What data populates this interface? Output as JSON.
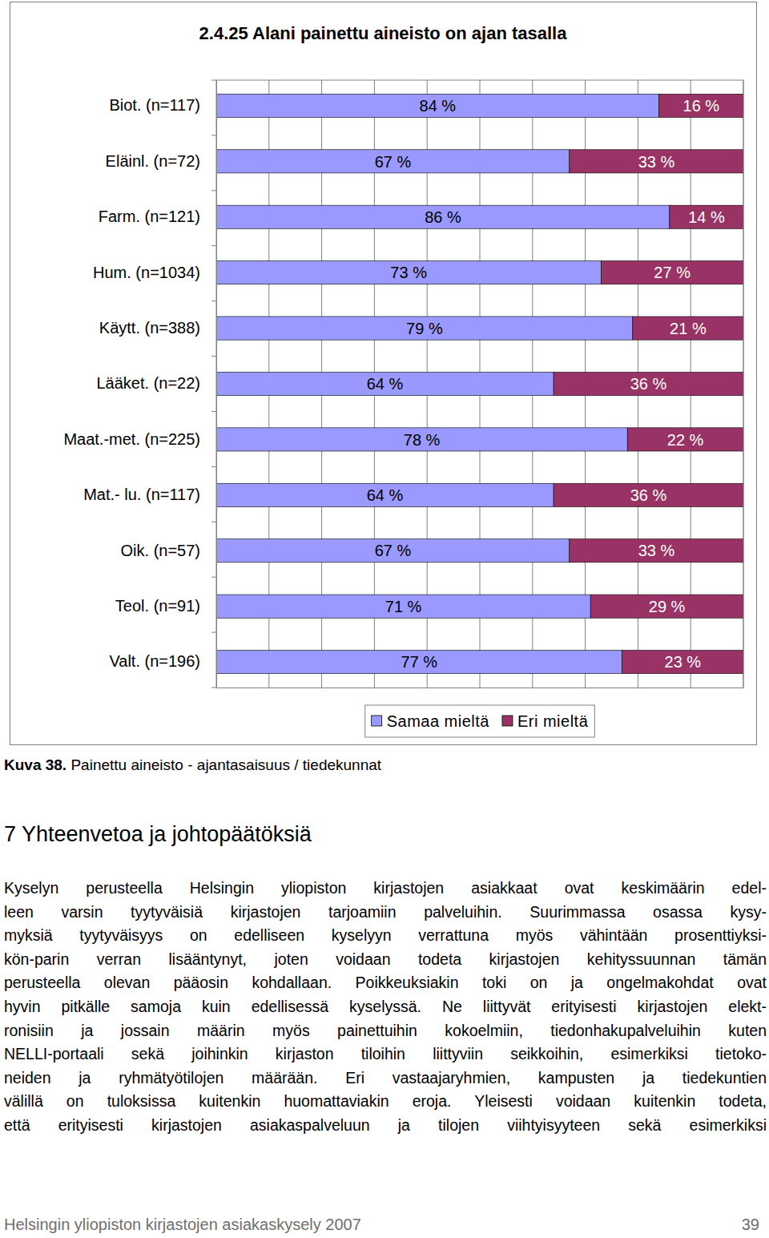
{
  "chart_data": {
    "type": "bar",
    "title": "2.4.25 Alani painettu aineisto on ajan tasalla",
    "orientation": "horizontal",
    "stacked": true,
    "data_labels": true,
    "grid": true,
    "tick_labels": "y",
    "legend": "bottom",
    "categories": [
      "Biot. (n=117)",
      "Eläinl. (n=72)",
      "Farm. (n=121)",
      "Hum. (n=1034)",
      "Käytt. (n=388)",
      "Lääket. (n=22)",
      "Maat.-met. (n=225)",
      "Mat.- lu. (n=117)",
      "Oik. (n=57)",
      "Teol. (n=91)",
      "Valt. (n=196)"
    ],
    "series": [
      {
        "name": "Samaa mieltä",
        "color": "#9999ff",
        "values": [
          84,
          67,
          86,
          73,
          79,
          64,
          78,
          64,
          67,
          71,
          77
        ],
        "value_labels": [
          "84 %",
          "67 %",
          "86 %",
          "73 %",
          "79 %",
          "64 %",
          "78 %",
          "64 %",
          "67 %",
          "71 %",
          "77 %"
        ]
      },
      {
        "name": "Eri mieltä",
        "color": "#993366",
        "values": [
          16,
          33,
          14,
          27,
          21,
          36,
          22,
          36,
          33,
          29,
          23
        ],
        "value_labels": [
          "16 %",
          "33 %",
          "14 %",
          "27 %",
          "21 %",
          "36 %",
          "22 %",
          "36 %",
          "33 %",
          "29 %",
          "23 %"
        ]
      }
    ],
    "xlim": [
      0,
      100
    ],
    "xticks": [
      0,
      10,
      20,
      30,
      40,
      50,
      60,
      70,
      80,
      90,
      100
    ]
  },
  "caption": {
    "label": "Kuva 38.",
    "text": "Painettu aineisto - ajantasaisuus / tiedekunnat"
  },
  "section": {
    "heading": "7 Yhteenvetoa ja johtopäätöksiä",
    "lines": [
      "Kyselyn perusteella Helsingin yliopiston kirjastojen asiakkaat ovat keskimäärin edel-",
      "leen varsin tyytyväisiä kirjastojen tarjoamiin palveluihin. Suurimmassa osassa kysy-",
      "myksiä tyytyväisyys on edelliseen kyselyyn verrattuna myös vähintään prosenttiyksi-",
      "kön-parin verran lisääntynyt, joten voidaan todeta kirjastojen kehityssuunnan tämän",
      "perusteella olevan pääosin kohdallaan. Poikkeuksiakin toki on ja ongelmakohdat ovat",
      "hyvin pitkälle samoja kuin edellisessä kyselyssä. Ne liittyvät erityisesti kirjastojen elekt-",
      "ronisiin ja jossain määrin myös painettuihin kokoelmiin, tiedonhakupalveluihin kuten",
      "NELLI-portaali sekä joihinkin kirjaston tiloihin liittyviin seikkoihin, esimerkiksi tietoko-",
      "neiden ja ryhmätyötilojen määrään. Eri vastaajaryhmien, kampusten ja tiedekuntien",
      "välillä on tuloksissa kuitenkin huomattaviakin eroja. Yleisesti voidaan kuitenkin todeta,",
      "että erityisesti kirjastojen asiakaspalveluun ja tilojen viihtyisyyteen sekä esimerkiksi"
    ]
  },
  "footer": {
    "text": "Helsingin yliopiston kirjastojen asiakaskysely 2007",
    "page": 39
  }
}
